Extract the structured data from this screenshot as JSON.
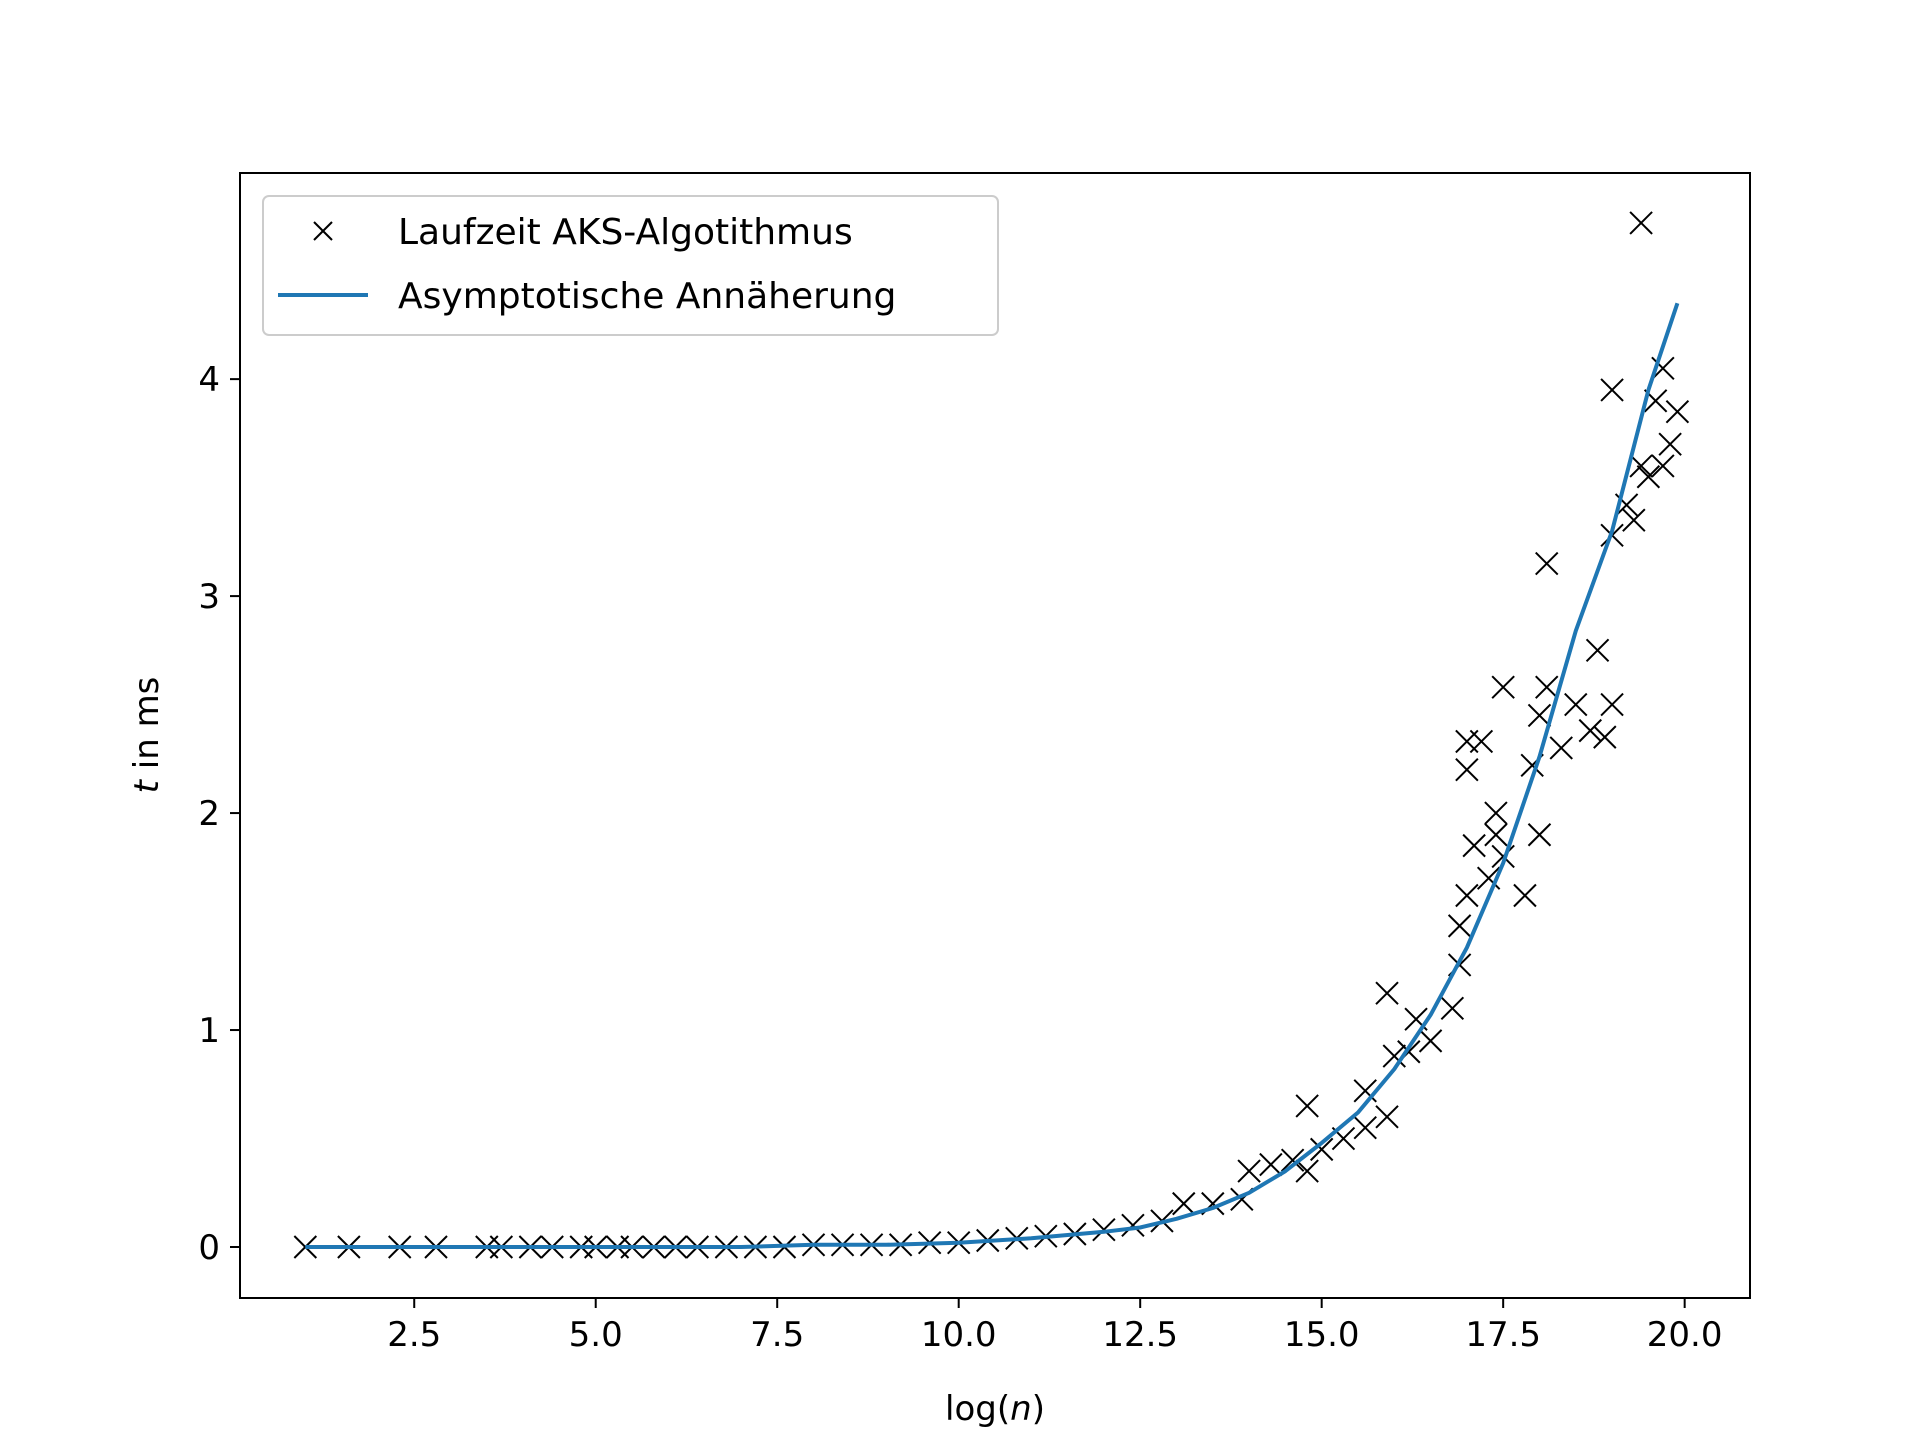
{
  "chart_data": {
    "type": "scatter",
    "xlabel_prefix": "log(",
    "xlabel_var": "n",
    "xlabel_suffix": ")",
    "ylabel_var": "t",
    "ylabel_suffix": " in ms",
    "xlim": [
      0.1,
      20.9
    ],
    "ylim": [
      -0.235,
      4.95
    ],
    "x_ticks": [
      2.5,
      5.0,
      7.5,
      10.0,
      12.5,
      15.0,
      17.5,
      20.0
    ],
    "x_tick_labels": [
      "2.5",
      "5.0",
      "7.5",
      "10.0",
      "12.5",
      "15.0",
      "17.5",
      "20.0"
    ],
    "y_ticks": [
      0,
      1,
      2,
      3,
      4
    ],
    "y_tick_labels": [
      "0",
      "1",
      "2",
      "3",
      "4"
    ],
    "grid": false,
    "legend_position": "upper-left",
    "colors": {
      "scatter": "#000000",
      "fit": "#1f77b4"
    },
    "series": [
      {
        "name": "Laufzeit AKS-Algotithmus",
        "kind": "scatter",
        "marker": "x",
        "points": [
          [
            1.0,
            0.0
          ],
          [
            1.6,
            0.0
          ],
          [
            2.3,
            0.0
          ],
          [
            2.8,
            0.0
          ],
          [
            3.5,
            0.0
          ],
          [
            3.7,
            0.0
          ],
          [
            4.1,
            0.0
          ],
          [
            4.4,
            0.0
          ],
          [
            4.8,
            0.0
          ],
          [
            5.0,
            0.0
          ],
          [
            5.3,
            0.0
          ],
          [
            5.5,
            0.0
          ],
          [
            5.8,
            0.0
          ],
          [
            6.1,
            0.0
          ],
          [
            6.4,
            0.0
          ],
          [
            6.8,
            0.0
          ],
          [
            7.2,
            0.0
          ],
          [
            7.6,
            0.0
          ],
          [
            8.0,
            0.01
          ],
          [
            8.4,
            0.01
          ],
          [
            8.8,
            0.01
          ],
          [
            9.2,
            0.01
          ],
          [
            9.6,
            0.02
          ],
          [
            10.0,
            0.02
          ],
          [
            10.4,
            0.03
          ],
          [
            10.8,
            0.04
          ],
          [
            11.2,
            0.05
          ],
          [
            11.6,
            0.06
          ],
          [
            12.0,
            0.08
          ],
          [
            12.4,
            0.1
          ],
          [
            12.8,
            0.12
          ],
          [
            13.1,
            0.2
          ],
          [
            13.5,
            0.2
          ],
          [
            13.9,
            0.22
          ],
          [
            14.0,
            0.35
          ],
          [
            14.3,
            0.38
          ],
          [
            14.6,
            0.4
          ],
          [
            14.8,
            0.35
          ],
          [
            14.8,
            0.65
          ],
          [
            15.0,
            0.45
          ],
          [
            15.3,
            0.5
          ],
          [
            15.6,
            0.55
          ],
          [
            15.6,
            0.72
          ],
          [
            15.9,
            0.6
          ],
          [
            15.9,
            1.17
          ],
          [
            16.0,
            0.88
          ],
          [
            16.2,
            0.9
          ],
          [
            16.3,
            1.05
          ],
          [
            16.5,
            0.95
          ],
          [
            16.8,
            1.1
          ],
          [
            16.9,
            1.3
          ],
          [
            16.9,
            1.48
          ],
          [
            17.0,
            1.62
          ],
          [
            17.0,
            2.33
          ],
          [
            17.0,
            2.2
          ],
          [
            17.2,
            2.33
          ],
          [
            17.1,
            1.85
          ],
          [
            17.3,
            1.7
          ],
          [
            17.4,
            1.9
          ],
          [
            17.4,
            2.0
          ],
          [
            17.5,
            1.8
          ],
          [
            17.5,
            2.58
          ],
          [
            17.8,
            1.62
          ],
          [
            17.9,
            2.22
          ],
          [
            18.0,
            1.9
          ],
          [
            18.0,
            2.45
          ],
          [
            18.1,
            2.58
          ],
          [
            18.1,
            3.15
          ],
          [
            18.3,
            2.3
          ],
          [
            18.5,
            2.5
          ],
          [
            18.7,
            2.38
          ],
          [
            18.8,
            2.75
          ],
          [
            18.9,
            2.35
          ],
          [
            19.0,
            2.5
          ],
          [
            19.0,
            3.28
          ],
          [
            19.0,
            3.95
          ],
          [
            19.2,
            3.42
          ],
          [
            19.3,
            3.35
          ],
          [
            19.4,
            3.6
          ],
          [
            19.4,
            4.72
          ],
          [
            19.5,
            3.55
          ],
          [
            19.6,
            3.9
          ],
          [
            19.7,
            4.05
          ],
          [
            19.7,
            3.6
          ],
          [
            19.8,
            3.7
          ],
          [
            19.9,
            3.85
          ]
        ]
      },
      {
        "name": "Asymptotische Annäherung",
        "kind": "line",
        "points": [
          [
            1.0,
            0.0
          ],
          [
            2.0,
            0.0
          ],
          [
            3.0,
            0.0
          ],
          [
            4.0,
            0.0
          ],
          [
            5.0,
            0.0
          ],
          [
            6.0,
            0.0
          ],
          [
            7.0,
            0.0
          ],
          [
            8.0,
            0.01
          ],
          [
            9.0,
            0.01
          ],
          [
            10.0,
            0.02
          ],
          [
            11.0,
            0.04
          ],
          [
            12.0,
            0.07
          ],
          [
            12.5,
            0.09
          ],
          [
            13.0,
            0.13
          ],
          [
            13.5,
            0.18
          ],
          [
            14.0,
            0.25
          ],
          [
            14.5,
            0.35
          ],
          [
            15.0,
            0.48
          ],
          [
            15.5,
            0.62
          ],
          [
            16.0,
            0.82
          ],
          [
            16.5,
            1.07
          ],
          [
            17.0,
            1.38
          ],
          [
            17.5,
            1.77
          ],
          [
            18.0,
            2.26
          ],
          [
            18.5,
            2.84
          ],
          [
            19.0,
            3.3
          ],
          [
            19.5,
            3.95
          ],
          [
            19.9,
            4.35
          ]
        ]
      }
    ]
  }
}
